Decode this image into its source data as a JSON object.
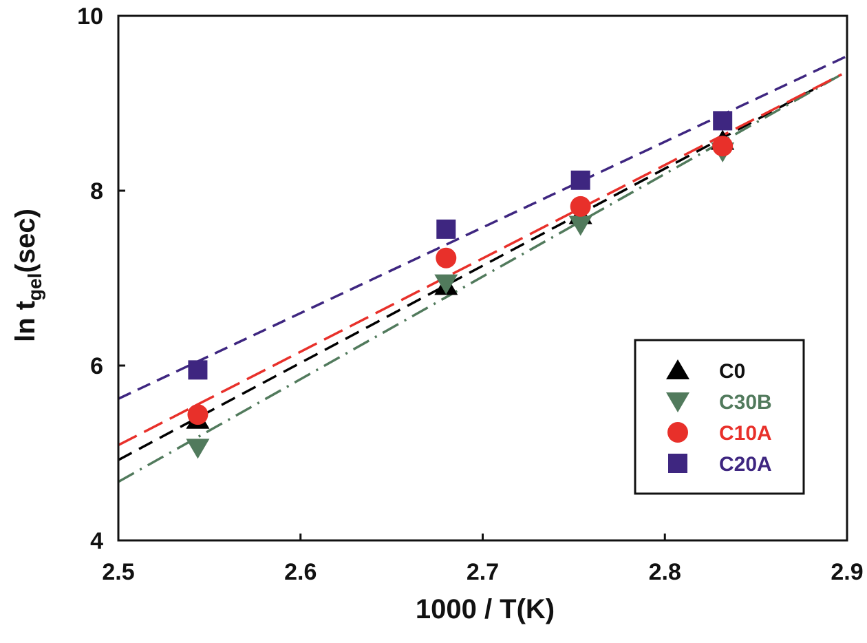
{
  "chart_data": {
    "type": "scatter",
    "title": "",
    "xlabel": "1000 / T(K)",
    "ylabel": {
      "main": "ln t",
      "subscript": "gel",
      "suffix": "(sec)"
    },
    "xlim": [
      2.5,
      2.9
    ],
    "ylim": [
      4,
      10
    ],
    "xticks": [
      2.5,
      2.6,
      2.7,
      2.8,
      2.9
    ],
    "xtick_labels": [
      "2.5",
      "2.6",
      "2.7",
      "2.8",
      "2.9"
    ],
    "yticks": [
      4,
      6,
      8,
      10
    ],
    "ytick_labels": [
      "4",
      "6",
      "8",
      "10"
    ],
    "grid": false,
    "legend_position": "lower-right",
    "x": [
      2.5436,
      2.6799,
      2.7537,
      2.8317
    ],
    "series": [
      {
        "name": "C0",
        "marker": "triangle-up",
        "color": "#000000",
        "line_style": "dashed",
        "values": [
          5.38,
          6.91,
          7.72,
          8.57
        ],
        "fit_line": {
          "x": [
            2.5,
            2.897
          ],
          "y": [
            4.92,
            9.33
          ]
        }
      },
      {
        "name": "C30B",
        "marker": "triangle-down",
        "color": "#517a5c",
        "line_style": "dash-dot",
        "values": [
          5.06,
          6.94,
          7.61,
          8.45
        ],
        "fit_line": {
          "x": [
            2.5,
            2.897
          ],
          "y": [
            4.67,
            9.33
          ]
        }
      },
      {
        "name": "C10A",
        "marker": "circle",
        "color": "#e8302a",
        "line_style": "dashed",
        "values": [
          5.44,
          7.23,
          7.82,
          8.51
        ],
        "fit_line": {
          "x": [
            2.5,
            2.897
          ],
          "y": [
            5.09,
            9.33
          ]
        }
      },
      {
        "name": "C20A",
        "marker": "square",
        "color": "#3e2680",
        "line_style": "dashed",
        "values": [
          5.95,
          7.56,
          8.12,
          8.8
        ],
        "fit_line": {
          "x": [
            2.5,
            2.9
          ],
          "y": [
            5.62,
            9.54
          ]
        }
      }
    ],
    "draw_order": [
      "C20A",
      "C0",
      "C30B",
      "C10A"
    ]
  }
}
